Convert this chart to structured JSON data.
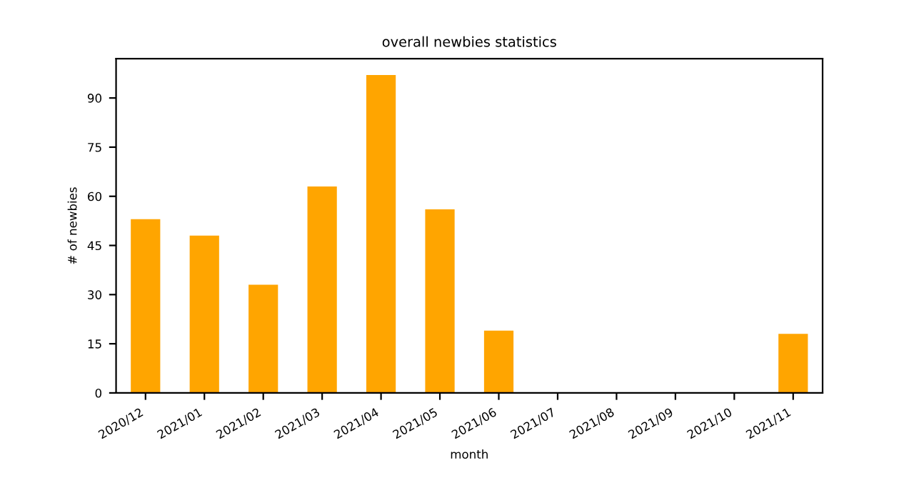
{
  "chart_data": {
    "type": "bar",
    "title": "overall newbies statistics",
    "xlabel": "month",
    "ylabel": "# of newbies",
    "categories": [
      "2020/12",
      "2021/01",
      "2021/02",
      "2021/03",
      "2021/04",
      "2021/05",
      "2021/06",
      "2021/07",
      "2021/08",
      "2021/09",
      "2021/10",
      "2021/11"
    ],
    "values": [
      53,
      48,
      33,
      63,
      97,
      56,
      19,
      0,
      0,
      0,
      0,
      18
    ],
    "color": "#ffa500",
    "ylim": [
      0,
      102
    ],
    "yticks": [
      0,
      15,
      30,
      45,
      60,
      75,
      90
    ],
    "grid": false,
    "legend": false
  }
}
